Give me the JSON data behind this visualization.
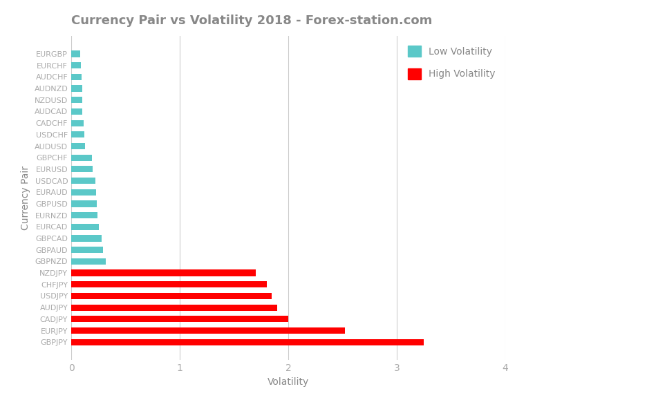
{
  "title": "Currency Pair vs Volatility 2018 - Forex-station.com",
  "xlabel": "Volatility",
  "ylabel": "Currency Pair",
  "categories": [
    "EURGBP",
    "EURCHF",
    "AUDCHF",
    "AUDNZD",
    "NZDUSD",
    "AUDCAD",
    "CADCHF",
    "USDCHF",
    "AUDUSD",
    "GBPCHF",
    "EURUSD",
    "USDCAD",
    "EURAUD",
    "GBPUSD",
    "EURNZD",
    "EURCAD",
    "GBPCAD",
    "GBPAUD",
    "GBPNZD",
    "NZDJPY",
    "CHFJPY",
    "USDJPY",
    "AUDJPY",
    "CADJPY",
    "EURJPY",
    "GBPJPY"
  ],
  "values": [
    0.085,
    0.09,
    0.095,
    0.1,
    0.1,
    0.1,
    0.115,
    0.12,
    0.13,
    0.19,
    0.2,
    0.22,
    0.23,
    0.235,
    0.24,
    0.255,
    0.28,
    0.295,
    0.315,
    1.7,
    1.8,
    1.85,
    1.9,
    2.0,
    2.52,
    3.25
  ],
  "colors": [
    "#5bc8c8",
    "#5bc8c8",
    "#5bc8c8",
    "#5bc8c8",
    "#5bc8c8",
    "#5bc8c8",
    "#5bc8c8",
    "#5bc8c8",
    "#5bc8c8",
    "#5bc8c8",
    "#5bc8c8",
    "#5bc8c8",
    "#5bc8c8",
    "#5bc8c8",
    "#5bc8c8",
    "#5bc8c8",
    "#5bc8c8",
    "#5bc8c8",
    "#5bc8c8",
    "#ff0000",
    "#ff0000",
    "#ff0000",
    "#ff0000",
    "#ff0000",
    "#ff0000",
    "#ff0000"
  ],
  "xlim": [
    0,
    4
  ],
  "xticks": [
    0,
    1,
    2,
    3,
    4
  ],
  "low_color": "#5bc8c8",
  "high_color": "#ff0000",
  "low_label": "Low Volatility",
  "high_label": "High Volatility",
  "title_color": "#888888",
  "axis_label_color": "#888888",
  "tick_color": "#aaaaaa",
  "grid_color": "#cccccc",
  "bg_color": "#ffffff",
  "bar_height": 0.55
}
